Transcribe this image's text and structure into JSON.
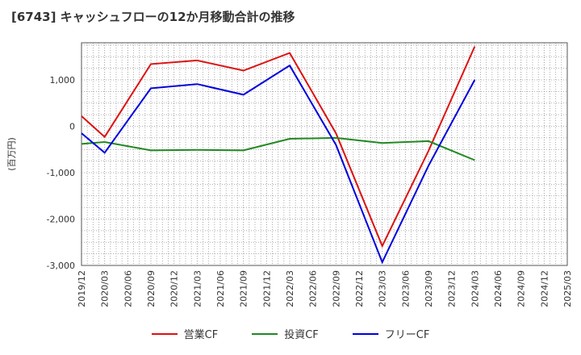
{
  "title": "[6743]  キャッシュフローの12か月移動合計の推移",
  "chart_data": {
    "type": "line",
    "title": "[6743]  キャッシュフローの12か月移動合計の推移",
    "ylabel": "(百万円)",
    "xlabel": "",
    "ylim": [
      -3000,
      1800
    ],
    "yticks": [
      -3000,
      -2000,
      -1000,
      0,
      1000
    ],
    "ytick_labels": [
      "-3,000",
      "-2,000",
      "-1,000",
      "0",
      "1,000"
    ],
    "x": [
      "2019/12",
      "2020/03",
      "2020/06",
      "2020/09",
      "2020/12",
      "2021/03",
      "2021/06",
      "2021/09",
      "2021/12",
      "2022/03",
      "2022/06",
      "2022/09",
      "2022/12",
      "2023/03",
      "2023/06",
      "2023/09",
      "2023/12",
      "2024/03",
      "2024/06",
      "2024/09",
      "2024/12",
      "2025/03"
    ],
    "series": [
      {
        "name": "営業CF",
        "color": "#dd1111",
        "values": [
          220,
          -230,
          null,
          1340,
          null,
          1420,
          null,
          1200,
          null,
          1580,
          null,
          -150,
          null,
          -2580,
          null,
          -530,
          null,
          1720,
          null,
          null,
          null,
          null
        ]
      },
      {
        "name": "投資CF",
        "color": "#228822",
        "values": [
          -380,
          -340,
          null,
          -520,
          null,
          -510,
          null,
          -520,
          null,
          -270,
          null,
          -250,
          null,
          -360,
          null,
          -320,
          null,
          -730,
          null,
          null,
          null,
          null
        ]
      },
      {
        "name": "フリーCF",
        "color": "#0000dd",
        "values": [
          -150,
          -570,
          null,
          820,
          null,
          910,
          null,
          680,
          null,
          1310,
          null,
          -400,
          null,
          -2930,
          null,
          -850,
          null,
          1000,
          null,
          null,
          null,
          null
        ]
      }
    ],
    "grid": true,
    "legend_position": "bottom"
  }
}
